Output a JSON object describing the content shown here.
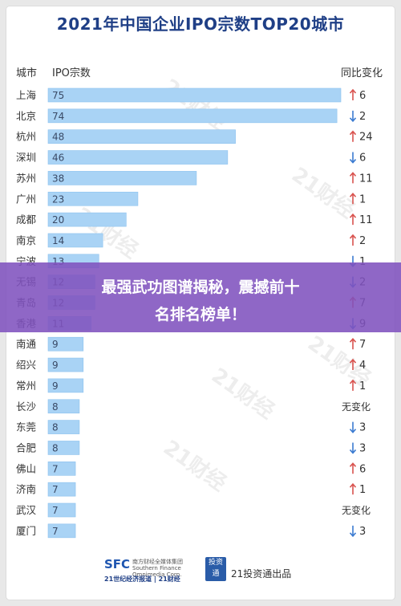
{
  "page": {
    "title": "2021年中国企业IPO宗数TOP20城市",
    "header_city": "城市",
    "header_ipo": "IPO宗数",
    "header_change": "同比变化"
  },
  "banner": {
    "line1": "最强武功图谱揭秘，震撼前十",
    "line2": "名排名榜单！"
  },
  "footer": {
    "sfc": "SFC",
    "sfc_sub": "南方财经全媒体集团 Southern Finance Omnimedia Corp.",
    "paper": "21世纪经济报道 | 21财经",
    "badge": "投资通",
    "right": "21投资通出品"
  },
  "watermark": "21财经",
  "colors": {
    "bar": "#a9d3f5",
    "bar_edge": "#8cc2ee",
    "up": "#d9534f",
    "down": "#3b7bd1",
    "title": "#1f3f86",
    "banner": "#8052be"
  },
  "chart_data": {
    "type": "bar",
    "orientation": "horizontal",
    "title": "2021年中国企业IPO宗数TOP20城市",
    "xlabel": "IPO宗数",
    "ylabel": "城市",
    "xlim": [
      0,
      75
    ],
    "grid": false,
    "categories": [
      "上海",
      "北京",
      "杭州",
      "深圳",
      "苏州",
      "广州",
      "成都",
      "南京",
      "宁波",
      "无锡",
      "青岛",
      "香港",
      "南通",
      "绍兴",
      "常州",
      "长沙",
      "东莞",
      "合肥",
      "佛山",
      "济南",
      "武汉",
      "厦门"
    ],
    "values": [
      75,
      74,
      48,
      46,
      38,
      23,
      20,
      14,
      13,
      12,
      12,
      11,
      9,
      9,
      9,
      8,
      8,
      8,
      7,
      7,
      7,
      7
    ],
    "change": [
      {
        "dir": "up",
        "text": "6"
      },
      {
        "dir": "down",
        "text": "2"
      },
      {
        "dir": "up",
        "text": "24"
      },
      {
        "dir": "down",
        "text": "6"
      },
      {
        "dir": "up",
        "text": "11"
      },
      {
        "dir": "up",
        "text": "1"
      },
      {
        "dir": "up",
        "text": "11"
      },
      {
        "dir": "up",
        "text": "2"
      },
      {
        "dir": "down",
        "text": "1"
      },
      {
        "dir": "down",
        "text": "2"
      },
      {
        "dir": "up",
        "text": "7"
      },
      {
        "dir": "down",
        "text": "9"
      },
      {
        "dir": "up",
        "text": "7"
      },
      {
        "dir": "up",
        "text": "4"
      },
      {
        "dir": "up",
        "text": "1"
      },
      {
        "dir": "none",
        "text": "无变化"
      },
      {
        "dir": "down",
        "text": "3"
      },
      {
        "dir": "down",
        "text": "3"
      },
      {
        "dir": "up",
        "text": "6"
      },
      {
        "dir": "up",
        "text": "1"
      },
      {
        "dir": "none",
        "text": "无变化"
      },
      {
        "dir": "down",
        "text": "3"
      }
    ]
  }
}
